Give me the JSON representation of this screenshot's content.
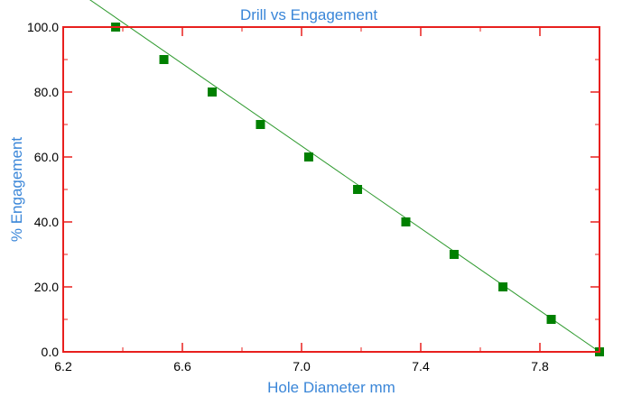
{
  "chart_data": {
    "type": "line",
    "title": "Drill vs Engagement",
    "xlabel": "Hole Diameter mm",
    "ylabel": "%  Engagement",
    "xlim": [
      6.2,
      8.0
    ],
    "ylim": [
      0,
      100
    ],
    "xticks": [
      "6.2",
      "6.6",
      "7.0",
      "7.4",
      "7.8"
    ],
    "xtick_values": [
      6.2,
      6.6,
      7.0,
      7.4,
      7.8
    ],
    "yticks": [
      "0.0",
      "20.0",
      "40.0",
      "60.0",
      "80.0",
      "100.0"
    ],
    "ytick_values": [
      0,
      20,
      40,
      60,
      80,
      100
    ],
    "grid": false,
    "legend": "none",
    "colors": {
      "frame": "#e8201e",
      "series": "#2e9a2e",
      "marker": "#008000",
      "label": "#3a86d8"
    },
    "series": [
      {
        "x": [
          6.376,
          6.538,
          6.7,
          6.862,
          7.024,
          7.188,
          7.35,
          7.512,
          7.676,
          7.838,
          8.0
        ],
        "values": [
          100,
          90,
          80,
          70,
          60,
          50,
          40,
          30,
          20,
          10,
          0
        ],
        "fit_line": {
          "x": [
            6.0,
            8.0
          ],
          "y": [
            126.76,
            0
          ]
        }
      }
    ]
  }
}
